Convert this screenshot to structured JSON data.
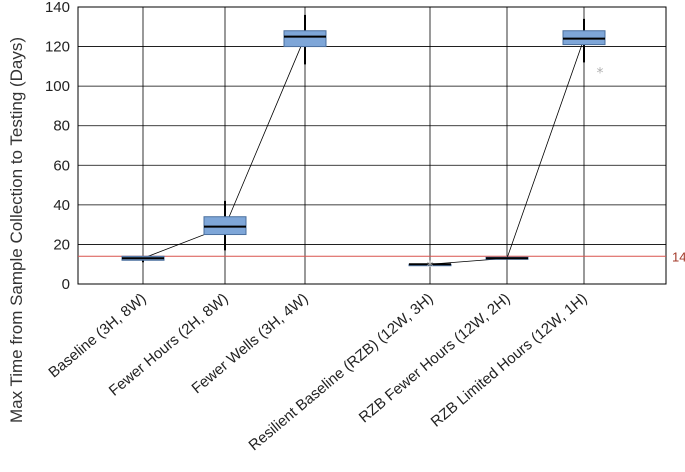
{
  "chart_data": {
    "type": "box",
    "title": "",
    "xlabel": "",
    "ylabel": "Max Time from Sample Collection to Testing (Days)",
    "ylim": [
      0,
      140
    ],
    "yticks": [
      0,
      20,
      40,
      60,
      80,
      100,
      120,
      140
    ],
    "grid": true,
    "categories": [
      "Baseline (3H, 8W)",
      "Fewer Hours (2H, 8W)",
      "Fewer Wells (3H, 4W)",
      "Resilient Baseline (RZB) (12W, 3H)",
      "RZB Fewer Hours (12W, 2H)",
      "RZB Limited Hours (12W, 1H)"
    ],
    "boxes": [
      {
        "q1": 12,
        "median": 13,
        "q3": 14,
        "whisker_low": 11,
        "whisker_high": 14,
        "outliers": []
      },
      {
        "q1": 25,
        "median": 29,
        "q3": 34,
        "whisker_low": 17,
        "whisker_high": 42,
        "outliers": []
      },
      {
        "q1": 120,
        "median": 125,
        "q3": 128,
        "whisker_low": 111,
        "whisker_high": 136,
        "outliers": []
      },
      {
        "q1": 10,
        "median": 10,
        "q3": 10,
        "whisker_low": 10,
        "whisker_high": 10,
        "outliers": [
          9
        ]
      },
      {
        "q1": 12.5,
        "median": 13,
        "q3": 13.5,
        "whisker_low": 12.5,
        "whisker_high": 13.5,
        "outliers": []
      },
      {
        "q1": 121,
        "median": 124,
        "q3": 128,
        "whisker_low": 112,
        "whisker_high": 134,
        "outliers": [
          107
        ]
      }
    ],
    "reference_line": {
      "value": 14,
      "label": "14",
      "color": "#d9534f"
    },
    "trend_lines": [
      [
        0,
        1,
        2
      ],
      [
        3,
        4,
        5
      ]
    ],
    "colors": {
      "box_fill": "#7ea6d8",
      "box_stroke": "#4a6f9e",
      "median": "#000000",
      "grid": "#000000",
      "outlier": "#b0b0b0",
      "trend": "#000000"
    }
  }
}
